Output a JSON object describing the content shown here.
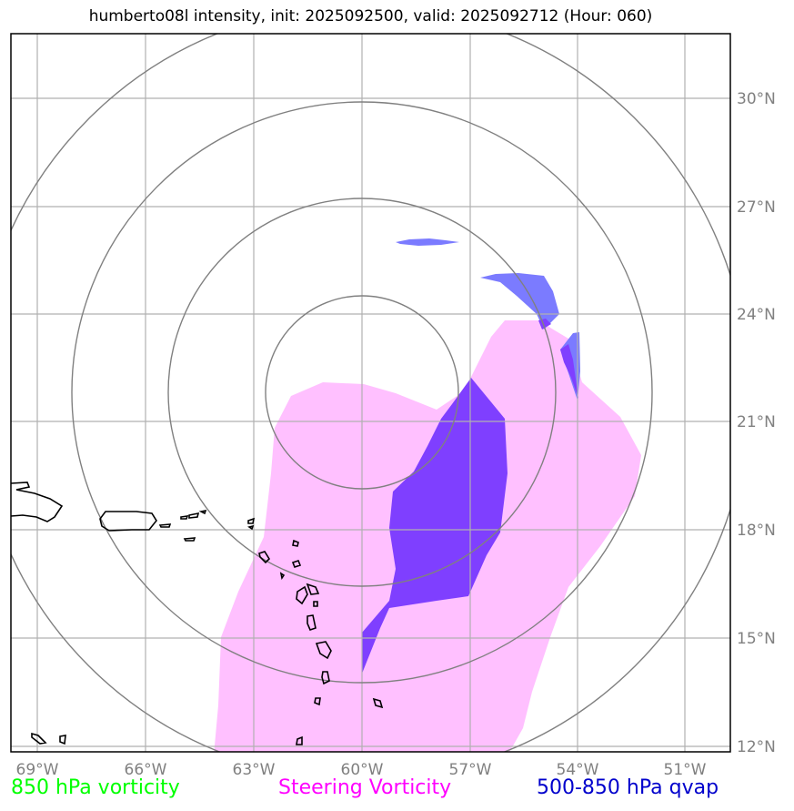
{
  "title": "humberto08l intensity, init: 2025092500, valid: 2025092712 (Hour: 060)",
  "map": {
    "lon_ticks": [
      "69°W",
      "66°W",
      "63°W",
      "60°W",
      "57°W",
      "54°W",
      "51°W"
    ],
    "lat_ticks": [
      "30°N",
      "27°N",
      "24°N",
      "21°N",
      "18°N",
      "15°N",
      "12°N"
    ],
    "colors": {
      "steering_vorticity_fill": "#ffc0ff",
      "qvap_fill": "#7b7bff",
      "overlap_fill": "#7f3fff",
      "range_rings": "#808080",
      "gridlines": "#b0b0b0",
      "coastline": "#000000"
    }
  },
  "legend": {
    "items": [
      {
        "label": "850 hPa vorticity",
        "color": "#00ff00"
      },
      {
        "label": "Steering Vorticity",
        "color": "#ff00ff"
      },
      {
        "label": "500-850 hPa qvap",
        "color": "#0000cc"
      }
    ]
  }
}
